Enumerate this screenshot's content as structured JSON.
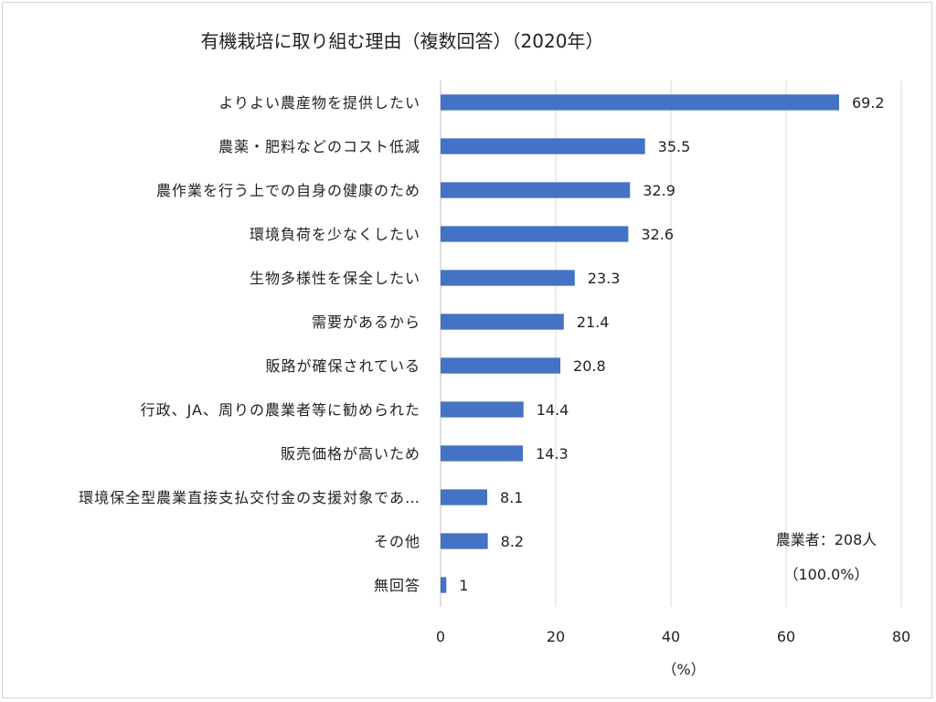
{
  "chart_data": {
    "type": "bar",
    "orientation": "horizontal",
    "title": "有機栽培に取り組む理由（複数回答）（2020年）",
    "xlabel": "（%）",
    "ylabel": "",
    "xlim": [
      0,
      80
    ],
    "x_ticks": [
      "0",
      "20",
      "40",
      "60",
      "80"
    ],
    "grid": "vertical",
    "bar_color": "#4472C4",
    "categories": [
      "よりよい農産物を提供したい",
      "農薬・肥料などのコスト低減",
      "農作業を行う上での自身の健康のため",
      "環境負荷を少なくしたい",
      "生物多様性を保全したい",
      "需要があるから",
      "販路が確保されている",
      "行政、JA、周りの農業者等に勧められた",
      "販売価格が高いため",
      "環境保全型農業直接支払交付金の支援対象であ…",
      "その他",
      "無回答"
    ],
    "values": [
      69.2,
      35.5,
      32.9,
      32.6,
      23.3,
      21.4,
      20.8,
      14.4,
      14.3,
      8.1,
      8.2,
      1
    ],
    "value_labels": [
      "69.2",
      "35.5",
      "32.9",
      "32.6",
      "23.3",
      "21.4",
      "20.8",
      "14.4",
      "14.3",
      "8.1",
      "8.2",
      "1"
    ],
    "annotation": {
      "line1": "農業者：208人",
      "line2": "（100.0%）"
    }
  }
}
